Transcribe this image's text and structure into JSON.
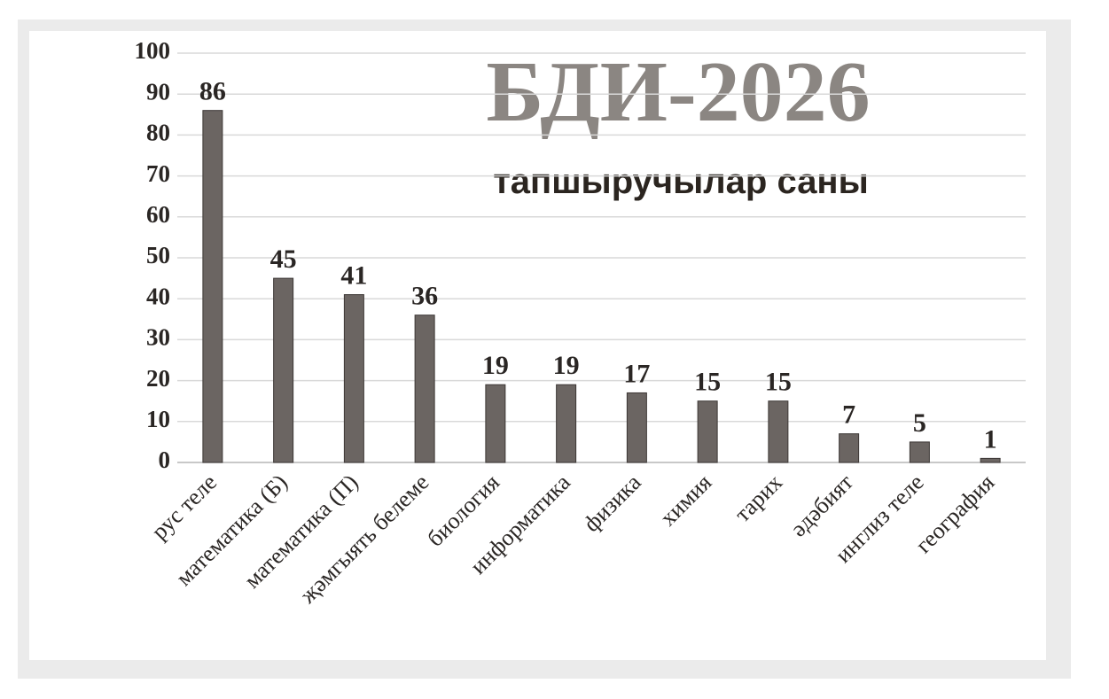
{
  "chart_data": {
    "type": "bar",
    "title": "БДИ-2026",
    "subtitle": "тапшыручылар саны",
    "categories": [
      "рус теле",
      "математика (Б)",
      "математика (П)",
      "җәмгыять белеме",
      "биология",
      "информатика",
      "физика",
      "химия",
      "тарих",
      "әдәбият",
      "инглиз теле",
      "география"
    ],
    "values": [
      86,
      45,
      41,
      36,
      19,
      19,
      17,
      15,
      15,
      7,
      5,
      1
    ],
    "color": "#6b6562",
    "ylim": [
      0,
      100
    ],
    "yticks": [
      0,
      10,
      20,
      30,
      40,
      50,
      60,
      70,
      80,
      90,
      100
    ],
    "grid": true
  }
}
